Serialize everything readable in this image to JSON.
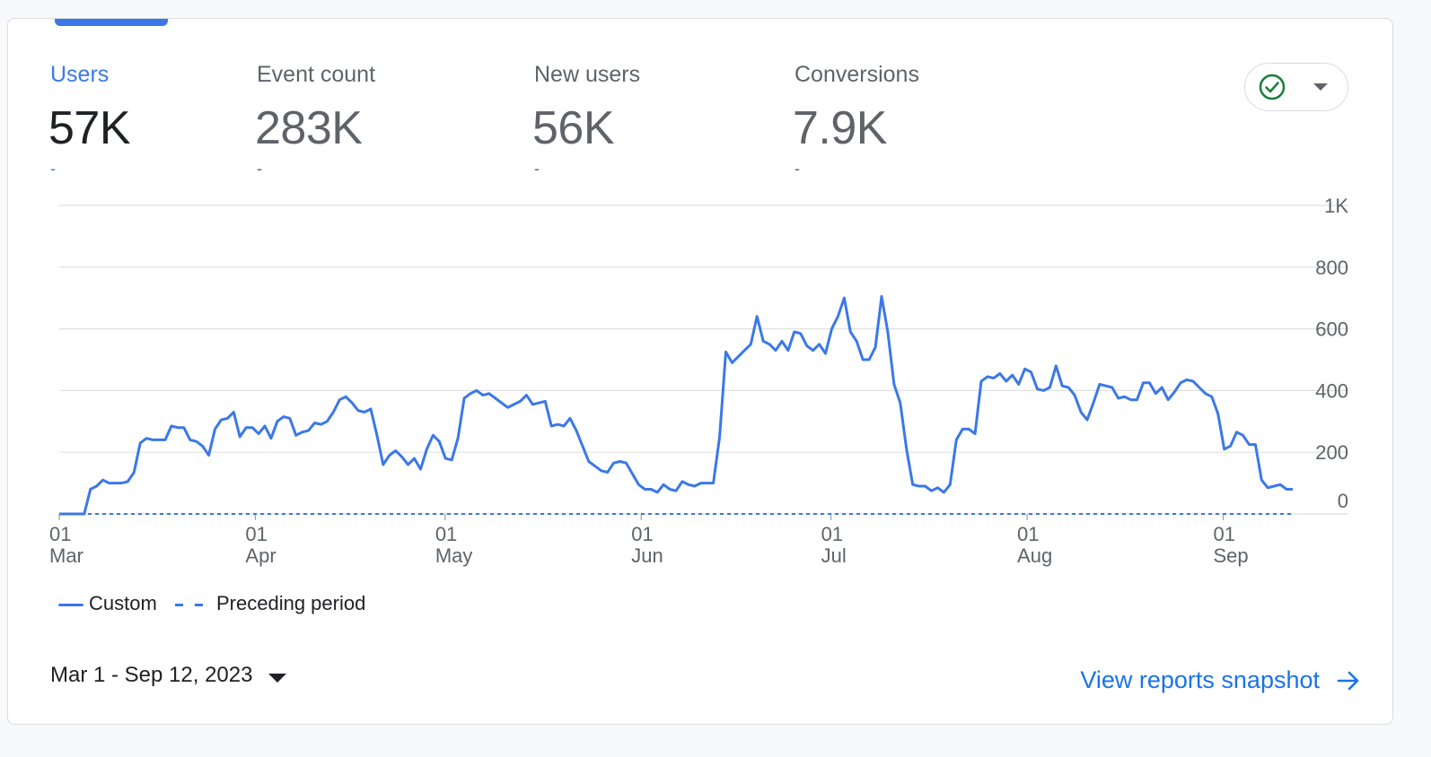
{
  "metrics": [
    {
      "label": "Users",
      "value": "57K",
      "delta": "-"
    },
    {
      "label": "Event count",
      "value": "283K",
      "delta": "-"
    },
    {
      "label": "New users",
      "value": "56K",
      "delta": "-"
    },
    {
      "label": "Conversions",
      "value": "7.9K",
      "delta": "-"
    }
  ],
  "status_icon": "check-circle-icon",
  "legend": {
    "custom": "Custom",
    "preceding": "Preceding period"
  },
  "date_range": "Mar 1 - Sep 12, 2023",
  "snapshot_link": "View reports snapshot",
  "colors": {
    "accent": "#3b78e7",
    "link": "#1a73e8",
    "success": "#188038"
  },
  "chart_data": {
    "type": "line",
    "x_labels": [
      {
        "day": "01",
        "month": "Mar"
      },
      {
        "day": "01",
        "month": "Apr"
      },
      {
        "day": "01",
        "month": "May"
      },
      {
        "day": "01",
        "month": "Jun"
      },
      {
        "day": "01",
        "month": "Jul"
      },
      {
        "day": "01",
        "month": "Aug"
      },
      {
        "day": "01",
        "month": "Sep"
      }
    ],
    "x_range": [
      "2023-03-01",
      "2023-09-12"
    ],
    "y_ticks": [
      "0",
      "200",
      "400",
      "600",
      "800",
      "1K"
    ],
    "ylim": [
      0,
      1000
    ],
    "grid": true,
    "legend_position": "bottom-left",
    "series": [
      {
        "name": "Custom",
        "style": "solid",
        "values": [
          0,
          0,
          0,
          0,
          0,
          80,
          90,
          110,
          100,
          100,
          100,
          105,
          135,
          230,
          245,
          240,
          240,
          240,
          285,
          280,
          280,
          240,
          235,
          220,
          190,
          275,
          305,
          310,
          330,
          250,
          280,
          280,
          260,
          285,
          245,
          300,
          315,
          310,
          255,
          265,
          270,
          295,
          290,
          300,
          330,
          370,
          380,
          360,
          335,
          330,
          340,
          255,
          160,
          190,
          205,
          185,
          160,
          180,
          145,
          210,
          255,
          235,
          180,
          175,
          245,
          375,
          390,
          400,
          385,
          390,
          375,
          360,
          345,
          355,
          365,
          385,
          355,
          360,
          365,
          285,
          290,
          285,
          310,
          270,
          220,
          170,
          155,
          140,
          135,
          165,
          170,
          165,
          130,
          95,
          80,
          80,
          70,
          95,
          80,
          75,
          105,
          95,
          90,
          100,
          100,
          100,
          250,
          525,
          490,
          510,
          530,
          550,
          640,
          560,
          550,
          530,
          560,
          530,
          590,
          585,
          545,
          530,
          550,
          520,
          600,
          640,
          700,
          590,
          560,
          500,
          500,
          540,
          705,
          590,
          420,
          360,
          210,
          95,
          90,
          90,
          75,
          85,
          70,
          95,
          240,
          275,
          275,
          260,
          430,
          445,
          440,
          455,
          430,
          450,
          420,
          470,
          460,
          405,
          400,
          410,
          480,
          415,
          410,
          385,
          330,
          305,
          360,
          420,
          415,
          410,
          375,
          380,
          370,
          370,
          425,
          425,
          390,
          410,
          370,
          395,
          425,
          435,
          430,
          410,
          390,
          380,
          325,
          210,
          220,
          265,
          255,
          225,
          225,
          110,
          85,
          90,
          95,
          80,
          80
        ]
      },
      {
        "name": "Preceding period",
        "style": "dashed",
        "values": [
          0,
          0,
          0,
          0,
          0,
          0,
          0,
          0,
          0,
          0,
          0,
          0,
          0,
          0,
          0,
          0,
          0,
          0,
          0,
          0,
          0,
          0,
          0,
          0,
          0,
          0,
          0,
          0,
          0,
          0,
          0,
          0,
          0,
          0,
          0,
          0,
          0,
          0,
          0,
          0,
          0,
          0,
          0,
          0,
          0,
          0,
          0,
          0,
          0,
          0,
          0,
          0,
          0,
          0,
          0,
          0,
          0,
          0,
          0,
          0,
          0,
          0,
          0,
          0,
          0,
          0,
          0,
          0,
          0,
          0,
          0,
          0,
          0,
          0,
          0,
          0,
          0,
          0,
          0,
          0,
          0,
          0,
          0,
          0,
          0,
          0,
          0,
          0,
          0,
          0,
          0,
          0,
          0,
          0,
          0,
          0,
          0,
          0,
          0,
          0,
          0,
          0,
          0,
          0,
          0,
          0,
          0,
          0,
          0,
          0,
          0,
          0,
          0,
          0,
          0,
          0,
          0,
          0,
          0,
          0,
          0,
          0,
          0,
          0,
          0,
          0,
          0,
          0,
          0,
          0,
          0,
          0,
          0,
          0,
          0,
          0,
          0,
          0,
          0,
          0,
          0,
          0,
          0,
          0,
          0,
          0,
          0,
          0,
          0,
          0,
          0,
          0,
          0,
          0,
          0,
          0,
          0,
          0,
          0,
          0,
          0,
          0,
          0,
          0,
          0,
          0,
          0,
          0,
          0,
          0,
          0,
          0,
          0,
          0,
          0,
          0,
          0,
          0,
          0,
          0,
          0,
          0,
          0,
          0,
          0,
          0,
          0,
          0,
          0,
          0,
          0,
          0,
          0,
          0,
          0,
          0,
          0,
          0,
          0,
          0,
          0,
          0,
          0,
          0,
          0,
          0,
          0
        ]
      }
    ]
  }
}
